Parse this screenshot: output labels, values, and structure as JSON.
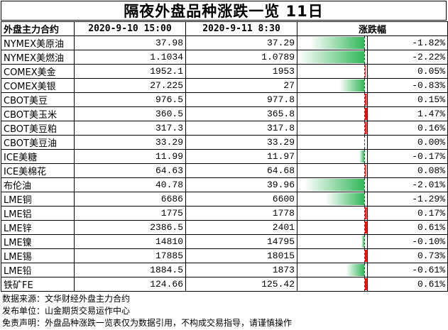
{
  "title": "隔夜外盘品种涨跌一览 11日",
  "headers": {
    "name": "外盘主力合约",
    "date1": "2020-9-10 15:00",
    "date2": "2020-9-11 8:30",
    "change": "涨跌幅"
  },
  "colors": {
    "up": "#ff0000",
    "down": "#33b85a"
  },
  "bar_scale_max_pct": 2.22,
  "rows": [
    {
      "name": "NYMEX美原油",
      "prev": "37.98",
      "curr": "37.29",
      "pct": "-1.82%",
      "value": -1.82
    },
    {
      "name": "NYMEX美燃油",
      "prev": "1.1034",
      "curr": "1.0789",
      "pct": "-2.22%",
      "value": -2.22
    },
    {
      "name": "COMEX美金",
      "prev": "1952.1",
      "curr": "1953",
      "pct": "0.05%",
      "value": 0.05
    },
    {
      "name": "COMEX美银",
      "prev": "27.225",
      "curr": "27",
      "pct": "-0.83%",
      "value": -0.83
    },
    {
      "name": "CBOT美豆",
      "prev": "976.5",
      "curr": "977.8",
      "pct": "0.15%",
      "value": 0.15
    },
    {
      "name": "CBOT美玉米",
      "prev": "360.5",
      "curr": "365.8",
      "pct": "1.47%",
      "value": 1.47
    },
    {
      "name": "CBOT美豆粕",
      "prev": "317.3",
      "curr": "317.8",
      "pct": "0.16%",
      "value": 0.16
    },
    {
      "name": "CBOT美豆油",
      "prev": "33.29",
      "curr": "33.29",
      "pct": "0.00%",
      "value": 0.0
    },
    {
      "name": "ICE美糖",
      "prev": "11.99",
      "curr": "11.97",
      "pct": "-0.17%",
      "value": -0.17
    },
    {
      "name": "ICE美棉花",
      "prev": "64.63",
      "curr": "64.68",
      "pct": "0.08%",
      "value": 0.08
    },
    {
      "name": "布伦油",
      "prev": "40.78",
      "curr": "39.96",
      "pct": "-2.01%",
      "value": -2.01
    },
    {
      "name": "LME铜",
      "prev": "6686",
      "curr": "6600",
      "pct": "-1.29%",
      "value": -1.29
    },
    {
      "name": "LME铝",
      "prev": "1775",
      "curr": "1778",
      "pct": "0.17%",
      "value": 0.17
    },
    {
      "name": "LME锌",
      "prev": "2386.5",
      "curr": "2401",
      "pct": "0.61%",
      "value": 0.61
    },
    {
      "name": "LME镍",
      "prev": "14810",
      "curr": "14795",
      "pct": "-0.10%",
      "value": -0.1
    },
    {
      "name": "LME锡",
      "prev": "17885",
      "curr": "18015",
      "pct": "0.73%",
      "value": 0.73
    },
    {
      "name": "LME铅",
      "prev": "1884.5",
      "curr": "1873",
      "pct": "-0.61%",
      "value": -0.61
    },
    {
      "name": "铁矿FE",
      "prev": "124.66",
      "curr": "125.42",
      "pct": "0.61%",
      "value": 0.61
    }
  ],
  "notes": [
    "数据来源：文华财经外盘主力合约",
    "发布单位：山金期货交易运作中心",
    "免责声明：外盘品种涨跌一览表仅为数据引用，不构成交易指导，请谨慎操作"
  ]
}
